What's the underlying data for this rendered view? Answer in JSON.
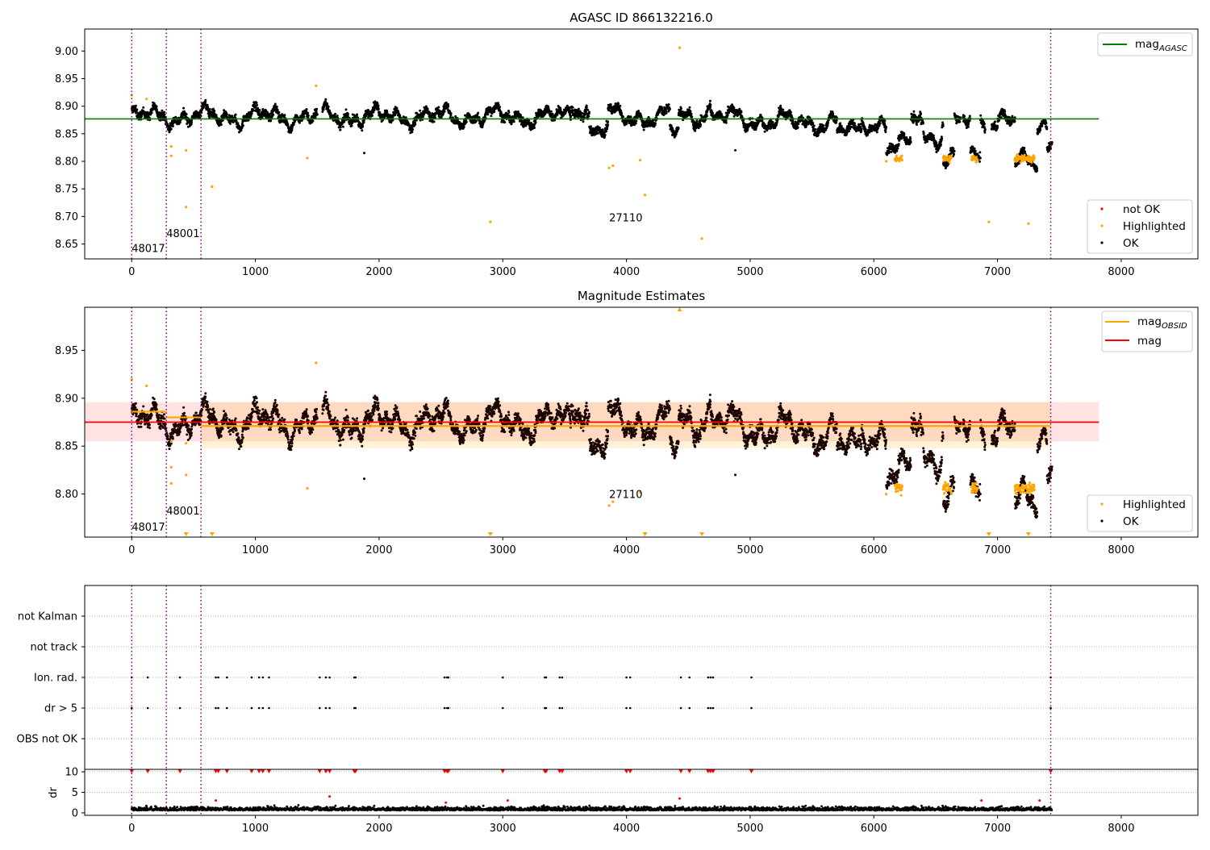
{
  "chart_data": [
    {
      "type": "scatter",
      "title": "AGASC ID 866132216.0",
      "xlim": [
        -380,
        8620
      ],
      "ylim": [
        8.623,
        9.04
      ],
      "xticks": [
        "0",
        "1000",
        "2000",
        "3000",
        "4000",
        "5000",
        "6000",
        "7000",
        "8000"
      ],
      "yticks": [
        "8.65",
        "8.70",
        "8.75",
        "8.80",
        "8.85",
        "8.90",
        "8.95",
        "9.00"
      ],
      "vlines_x": [
        0,
        280,
        560,
        7430
      ],
      "obsid_labels": [
        {
          "text": "48017",
          "x": 0,
          "y": 8.643
        },
        {
          "text": "48001",
          "x": 280,
          "y": 8.67
        },
        {
          "text": "27110",
          "x": 3860,
          "y": 8.698
        }
      ],
      "hline": {
        "name": "mag",
        "subscript": "AGASC",
        "y": 8.877,
        "x_range": [
          -380,
          7820
        ]
      },
      "series": [
        {
          "name": "not OK",
          "points": []
        },
        {
          "name": "Highlighted",
          "points": [
            [
              0,
              8.92
            ],
            [
              120,
              8.913
            ],
            [
              320,
              8.827
            ],
            [
              320,
              8.81
            ],
            [
              440,
              8.82
            ],
            [
              440,
              8.717
            ],
            [
              650,
              8.754
            ],
            [
              1420,
              8.806
            ],
            [
              1490,
              8.937
            ],
            [
              2900,
              8.69
            ],
            [
              3860,
              8.788
            ],
            [
              3890,
              8.792
            ],
            [
              4110,
              8.802
            ],
            [
              4150,
              8.739
            ],
            [
              4430,
              9.006
            ],
            [
              4610,
              8.66
            ],
            [
              6100,
              8.8
            ],
            [
              6930,
              8.69
            ],
            [
              7250,
              8.687
            ]
          ]
        },
        {
          "name": "OK",
          "points": [
            [
              1880,
              8.815
            ],
            [
              4880,
              8.82
            ]
          ]
        }
      ],
      "legend_top": {
        "name": "mag",
        "subscript": "AGASC",
        "position": "upper-right"
      },
      "legend_bottom_position": "lower-right"
    },
    {
      "type": "scatter",
      "title": "Magnitude Estimates",
      "xlim": [
        -380,
        8620
      ],
      "ylim": [
        8.755,
        8.995
      ],
      "xticks": [
        "0",
        "1000",
        "2000",
        "3000",
        "4000",
        "5000",
        "6000",
        "7000",
        "8000"
      ],
      "yticks": [
        "8.80",
        "8.85",
        "8.90",
        "8.95"
      ],
      "vlines_x": [
        0,
        280,
        560,
        7430
      ],
      "obsid_labels": [
        {
          "text": "48017",
          "x": 0,
          "y": 8.766
        },
        {
          "text": "48001",
          "x": 280,
          "y": 8.783
        },
        {
          "text": "27110",
          "x": 3860,
          "y": 8.8
        }
      ],
      "mag_band": {
        "center": 8.875,
        "low": 8.855,
        "high": 8.896,
        "x_range": [
          -380,
          7820
        ]
      },
      "obsid_segments": [
        {
          "x": [
            0,
            280
          ],
          "y": 8.886
        },
        {
          "x": [
            280,
            560
          ],
          "y": 8.88
        },
        {
          "x": [
            560,
            7430
          ],
          "y": 8.871,
          "low": 8.848,
          "high": 8.896
        }
      ],
      "hline": {
        "name": "mag",
        "y": 8.875,
        "x_range": [
          -380,
          7820
        ]
      },
      "series": [
        {
          "name": "Highlighted",
          "points": [
            [
              0,
              8.92
            ],
            [
              120,
              8.913
            ],
            [
              320,
              8.828
            ],
            [
              320,
              8.811
            ],
            [
              320,
              8.855
            ],
            [
              440,
              8.82
            ],
            [
              440,
              8.853
            ],
            [
              1420,
              8.806
            ],
            [
              1490,
              8.937
            ],
            [
              3860,
              8.788
            ],
            [
              3890,
              8.792
            ],
            [
              4110,
              8.802
            ],
            [
              6100,
              8.8
            ]
          ]
        },
        {
          "name": "OK",
          "points": [
            [
              1880,
              8.816
            ],
            [
              4880,
              8.82
            ]
          ]
        }
      ],
      "out_of_range_markers_x": [
        440,
        650,
        2900,
        4150,
        4610,
        6930,
        7250
      ],
      "out_of_range_top_x": [
        4430
      ],
      "legend_top": [
        {
          "name": "mag",
          "subscript": "OBSID"
        },
        {
          "name": "mag"
        }
      ],
      "legend_bottom_position": "lower-right"
    },
    {
      "type": "scatter",
      "title": "",
      "xlim": [
        -380,
        8620
      ],
      "categories": [
        "not Kalman",
        "not track",
        "Ion. rad.",
        "dr > 5",
        "OBS not OK"
      ],
      "vlines_x": [
        0,
        280,
        560,
        7430
      ],
      "flag_x": [
        0,
        130,
        390,
        680,
        700,
        770,
        970,
        1030,
        1060,
        1110,
        1520,
        1570,
        1600,
        1800,
        1810,
        2530,
        2550,
        2560,
        3000,
        3340,
        3350,
        3460,
        3480,
        4000,
        4030,
        4440,
        4510,
        4660,
        4680,
        4700,
        5010,
        7430
      ]
    },
    {
      "type": "scatter",
      "title": "",
      "ylabel": "dr",
      "xlim": [
        -380,
        8620
      ],
      "ylim": [
        -0.6,
        10.6
      ],
      "xticks": [
        "0",
        "1000",
        "2000",
        "3000",
        "4000",
        "5000",
        "6000",
        "7000",
        "8000"
      ],
      "yticks": [
        "0",
        "5",
        "10"
      ],
      "vlines_x": [
        0,
        280,
        560,
        7430
      ],
      "clipped_markers_x": [
        0,
        130,
        390,
        680,
        700,
        770,
        970,
        1030,
        1060,
        1110,
        1520,
        1570,
        1600,
        1800,
        1810,
        2530,
        2550,
        2560,
        3000,
        3340,
        3350,
        3460,
        3480,
        4000,
        4030,
        4440,
        4510,
        4660,
        4680,
        4700,
        5010,
        7430
      ],
      "red_points": [
        [
          680,
          3
        ],
        [
          1600,
          4
        ],
        [
          2540,
          2.5
        ],
        [
          3040,
          3
        ],
        [
          4430,
          3.5
        ],
        [
          6870,
          3
        ],
        [
          7340,
          3
        ]
      ]
    }
  ],
  "legend": {
    "not_ok": "not OK",
    "highlighted": "Highlighted",
    "ok": "OK"
  },
  "colors": {
    "ok": "#000000",
    "highlighted": "#ffa500",
    "not_ok": "#ff0000",
    "agasc": "#008000",
    "mag": "#ff0000",
    "obsid": "#ffa500",
    "vline": "#800080"
  }
}
